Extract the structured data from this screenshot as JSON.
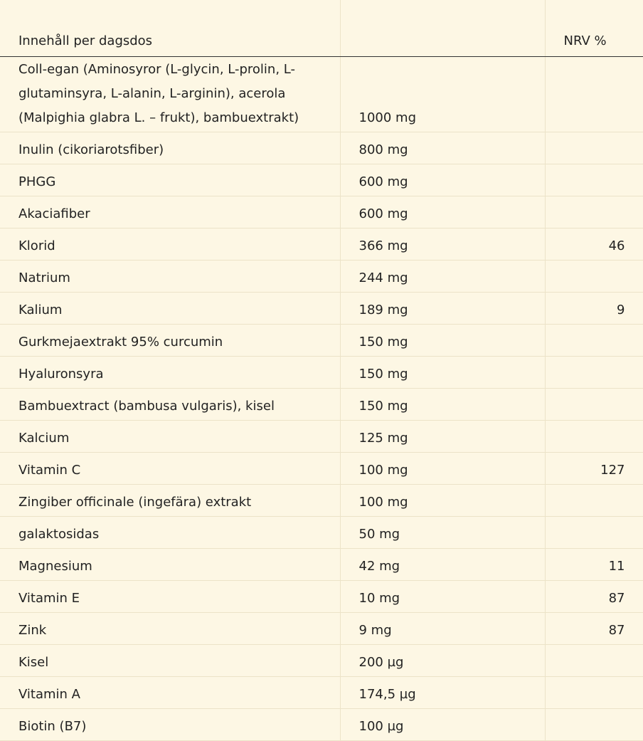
{
  "table": {
    "header": {
      "name": "Innehåll per dagsdos",
      "nrv": "NRV %"
    },
    "rows": [
      {
        "name": "Coll-egan (Aminosyror (L-glycin, L-prolin, L-glutaminsyra, L-alanin, L-arginin), acerola (Malpighia glabra L. – frukt), bambuextrakt)",
        "amount": "1000 mg"
      },
      {
        "name": "Inulin (cikoriarotsfiber)",
        "amount": "800 mg"
      },
      {
        "name": "PHGG",
        "amount": "600 mg"
      },
      {
        "name": "Akaciafiber",
        "amount": "600 mg"
      },
      {
        "name": "Klorid",
        "amount": "366 mg",
        "nrv": 46
      },
      {
        "name": "Natrium",
        "amount": "244 mg"
      },
      {
        "name": "Kalium",
        "amount": "189 mg",
        "nrv": 9
      },
      {
        "name": "Gurkmejaextrakt 95% curcumin",
        "amount": "150 mg"
      },
      {
        "name": "Hyaluronsyra",
        "amount": "150 mg"
      },
      {
        "name": "Bambuextract (bambusa vulgaris), kisel",
        "amount": "150 mg"
      },
      {
        "name": "Kalcium",
        "amount": "125 mg"
      },
      {
        "name": "Vitamin C",
        "amount": "100 mg",
        "nrv": 127
      },
      {
        "name": "Zingiber officinale (ingefära) extrakt",
        "amount": "100 mg"
      },
      {
        "name": "galaktosidas",
        "amount": "50 mg"
      },
      {
        "name": "Magnesium",
        "amount": "42 mg",
        "nrv": 11
      },
      {
        "name": "Vitamin E",
        "amount": "10 mg",
        "nrv": 87
      },
      {
        "name": "Zink",
        "amount": "9 mg",
        "nrv": 87
      },
      {
        "name": "Kisel",
        "amount": "200 µg"
      },
      {
        "name": "Vitamin A",
        "amount": "174,5 µg"
      },
      {
        "name": "Biotin (B7)",
        "amount": "100 µg"
      }
    ]
  }
}
